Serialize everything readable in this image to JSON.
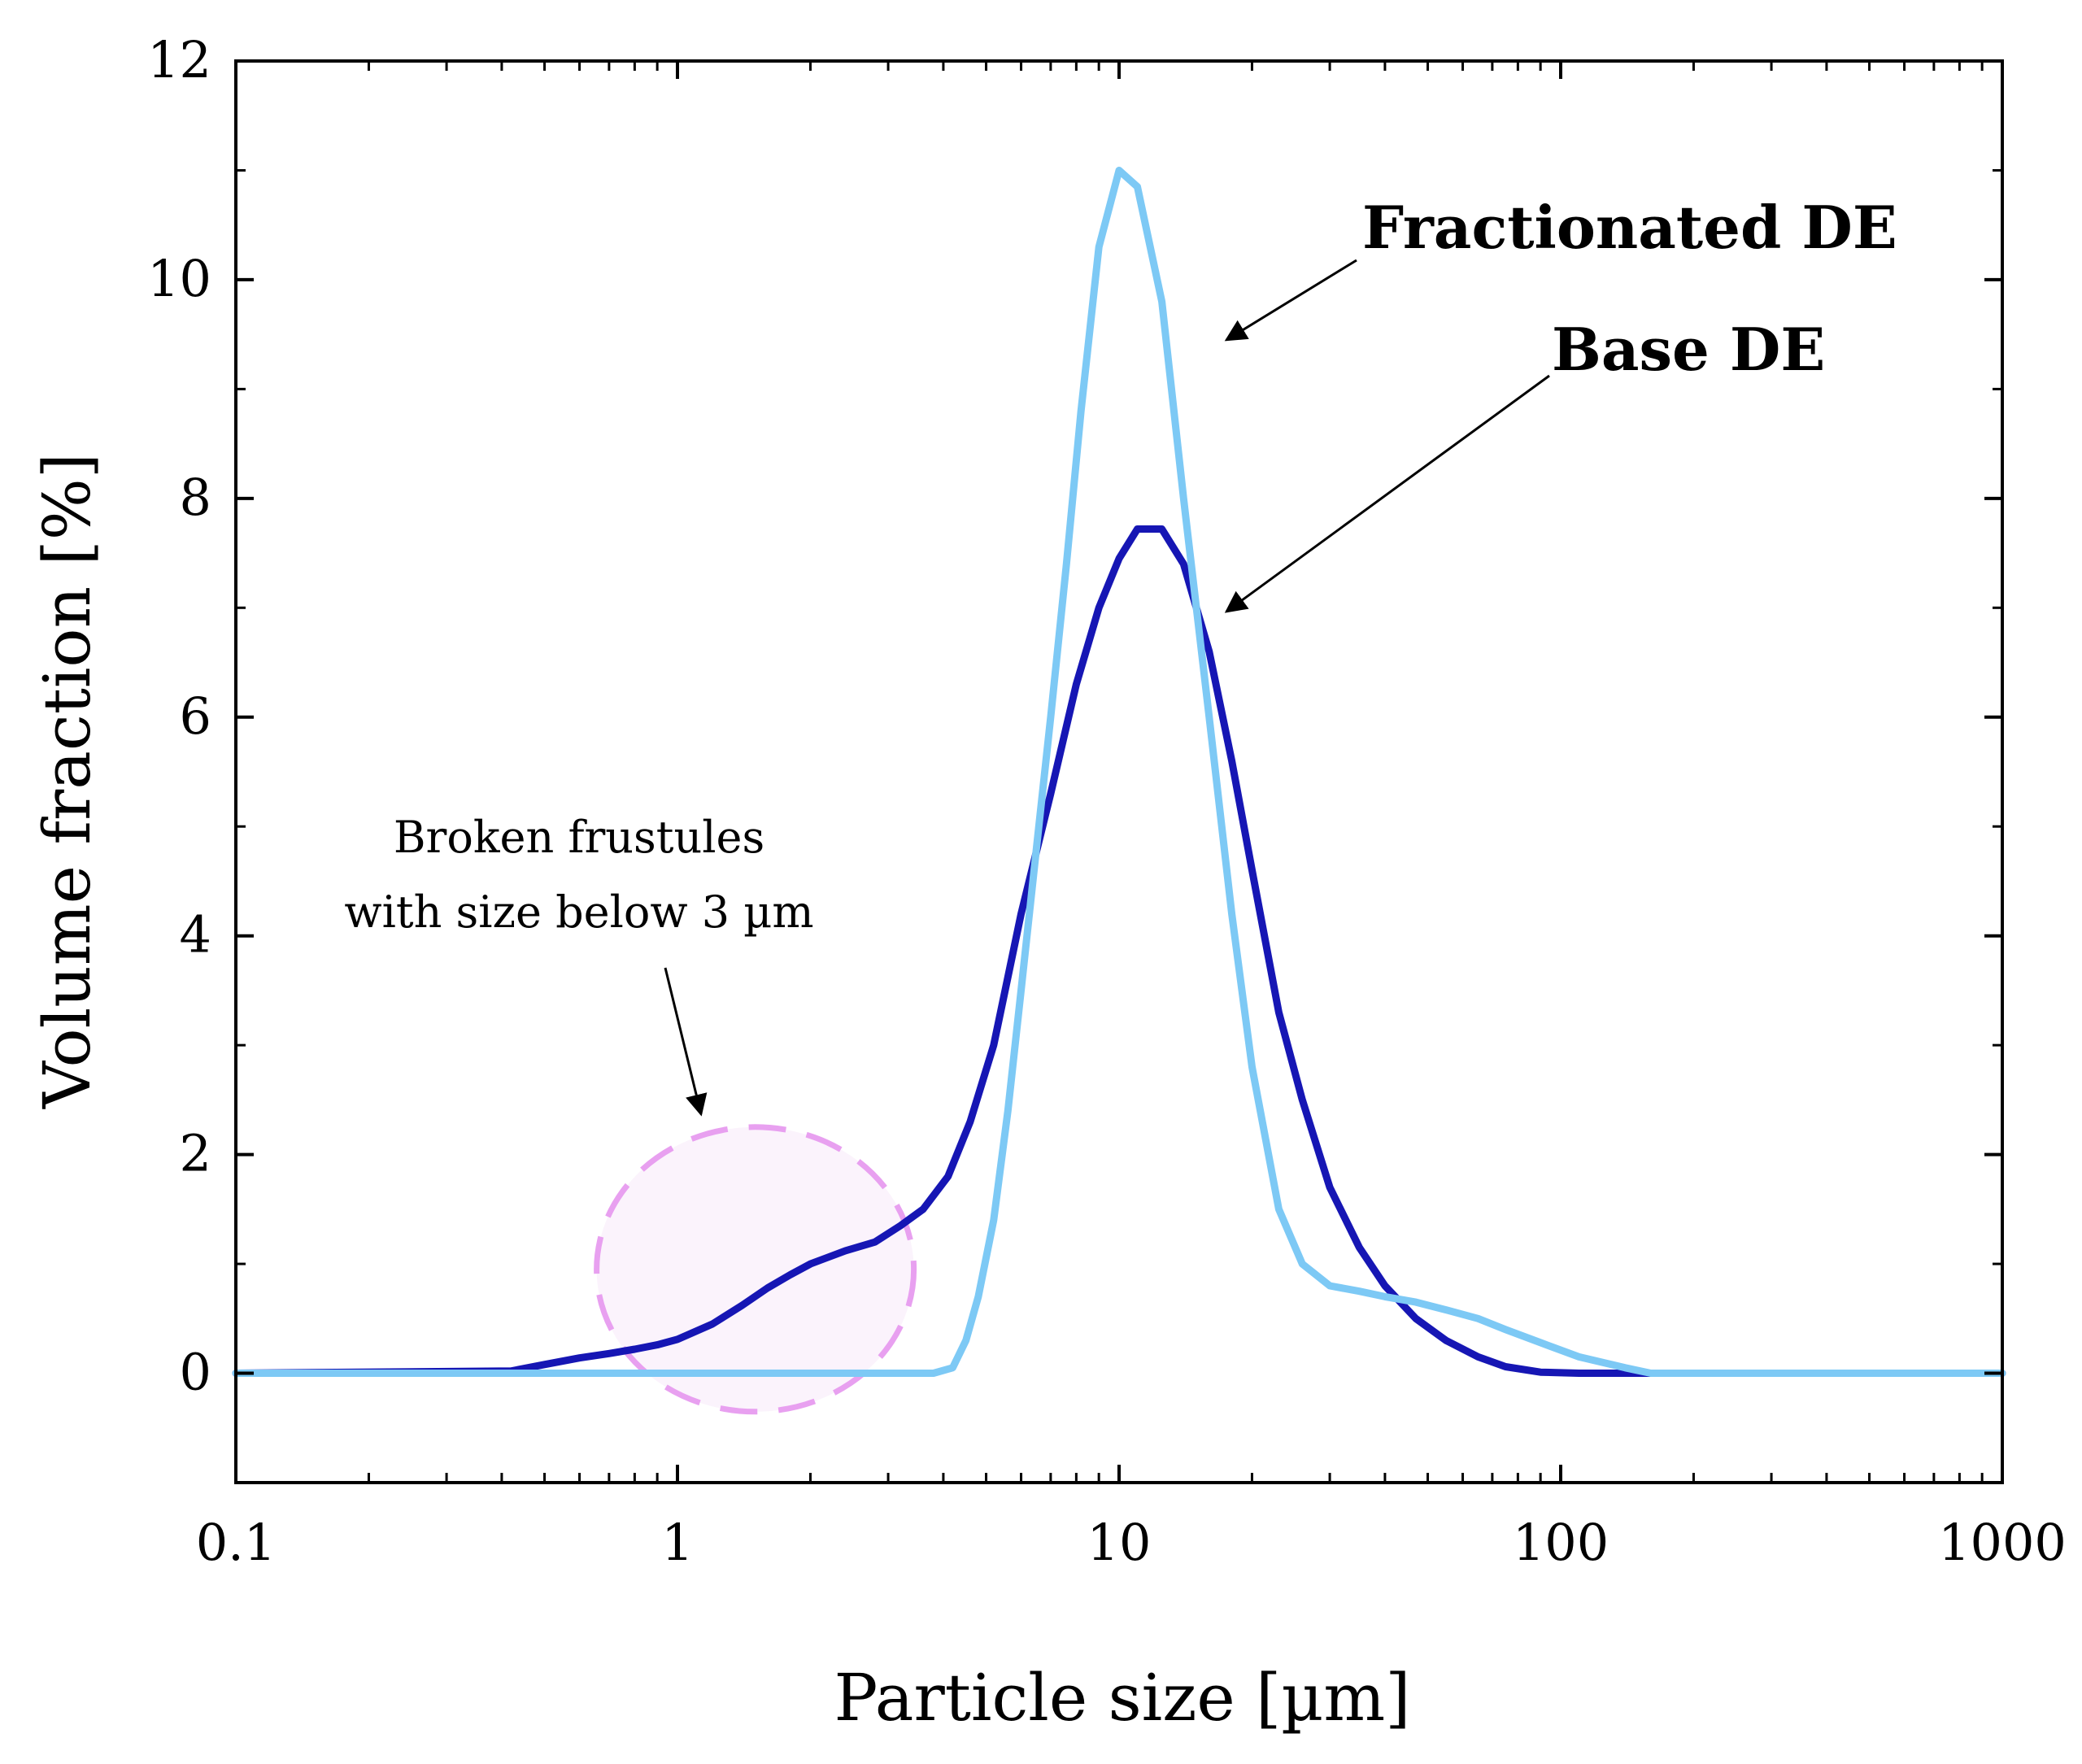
{
  "chart_data": {
    "type": "line",
    "title": "",
    "xlabel": "Particle size [µm]",
    "ylabel": "Volume fraction [%]",
    "xscale": "log",
    "xlim": [
      0.1,
      1000
    ],
    "ylim": [
      -1,
      12
    ],
    "xticks": [
      0.1,
      1,
      10,
      100,
      1000
    ],
    "xtick_labels": [
      "0.1",
      "1",
      "10",
      "100",
      "1000"
    ],
    "yticks": [
      0,
      2,
      4,
      6,
      8,
      10,
      12
    ],
    "ytick_labels": [
      "0",
      "2",
      "4",
      "6",
      "8",
      "10",
      "12"
    ],
    "grid": false,
    "series": [
      {
        "name": "Base DE",
        "color": "#1616b4",
        "x": [
          0.1,
          0.42,
          0.5,
          0.6,
          0.7,
          0.8,
          0.9,
          1.0,
          1.2,
          1.4,
          1.6,
          1.8,
          2.0,
          2.4,
          2.8,
          3.2,
          3.6,
          4.1,
          4.6,
          5.2,
          6.0,
          7.0,
          8.0,
          9.0,
          10.0,
          11.0,
          12.5,
          14.0,
          16.0,
          18.0,
          20.0,
          23.0,
          26.0,
          30.0,
          35.0,
          40.0,
          47.0,
          55.0,
          65.0,
          75.0,
          90.0,
          110.0,
          140.0,
          160.0,
          1000.0
        ],
        "y": [
          0,
          0.02,
          0.08,
          0.14,
          0.18,
          0.22,
          0.26,
          0.31,
          0.45,
          0.62,
          0.78,
          0.9,
          1.0,
          1.12,
          1.2,
          1.35,
          1.5,
          1.8,
          2.3,
          3.0,
          4.2,
          5.3,
          6.3,
          7.0,
          7.45,
          7.72,
          7.72,
          7.4,
          6.6,
          5.6,
          4.6,
          3.3,
          2.5,
          1.7,
          1.15,
          0.8,
          0.5,
          0.3,
          0.15,
          0.06,
          0.01,
          0.0,
          0.0,
          0.0,
          0.0
        ]
      },
      {
        "name": "Fractionated DE",
        "color": "#7dc9f5",
        "x": [
          0.1,
          3.8,
          4.2,
          4.5,
          4.8,
          5.2,
          5.6,
          6.0,
          6.5,
          7.0,
          7.6,
          8.2,
          9.0,
          10.0,
          11.0,
          12.5,
          14.0,
          16.0,
          18.0,
          20.0,
          23.0,
          26.0,
          30.0,
          35.0,
          40.0,
          47.0,
          55.0,
          65.0,
          75.0,
          90.0,
          110.0,
          140.0,
          160.0,
          1000.0
        ],
        "y": [
          0,
          0.0,
          0.05,
          0.3,
          0.7,
          1.4,
          2.4,
          3.5,
          4.8,
          6.0,
          7.4,
          8.8,
          10.3,
          11.0,
          10.85,
          9.8,
          8.0,
          6.0,
          4.2,
          2.8,
          1.5,
          1.0,
          0.8,
          0.75,
          0.7,
          0.65,
          0.58,
          0.5,
          0.4,
          0.28,
          0.15,
          0.05,
          0.0,
          0.0
        ]
      }
    ],
    "annotations": [
      {
        "text_lines": [
          "Broken frustules",
          "with size below 3 µm"
        ],
        "target": "dashed-circle",
        "circle_center": [
          1.5,
          0.95
        ],
        "circle_color": "#e8a0f0"
      }
    ],
    "labels": {
      "fractionated": "Fractionated DE",
      "base": "Base DE"
    }
  }
}
